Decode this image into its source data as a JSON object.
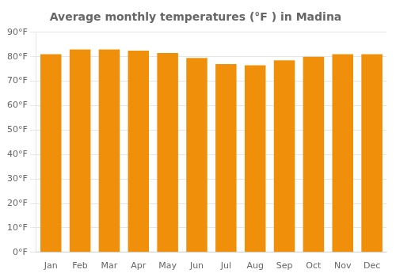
{
  "chart_data": {
    "type": "bar",
    "title": "Average monthly temperatures (°F ) in Madina",
    "categories": [
      "Jan",
      "Feb",
      "Mar",
      "Apr",
      "May",
      "Jun",
      "Jul",
      "Aug",
      "Sep",
      "Oct",
      "Nov",
      "Dec"
    ],
    "values": [
      81,
      83,
      83,
      82.5,
      81.5,
      79.5,
      77,
      76.5,
      78.5,
      80,
      81,
      81
    ],
    "color": "#F0900A",
    "ylim": [
      0,
      90
    ],
    "yticks": [
      {
        "value": 0,
        "label": "0°F"
      },
      {
        "value": 10,
        "label": "10°F"
      },
      {
        "value": 20,
        "label": "20°F"
      },
      {
        "value": 30,
        "label": "30°F"
      },
      {
        "value": 40,
        "label": "40°F"
      },
      {
        "value": 50,
        "label": "50°F"
      },
      {
        "value": 60,
        "label": "60°F"
      },
      {
        "value": 70,
        "label": "70°F"
      },
      {
        "value": 80,
        "label": "80°F"
      },
      {
        "value": 90,
        "label": "90°F"
      }
    ],
    "grid": true
  }
}
